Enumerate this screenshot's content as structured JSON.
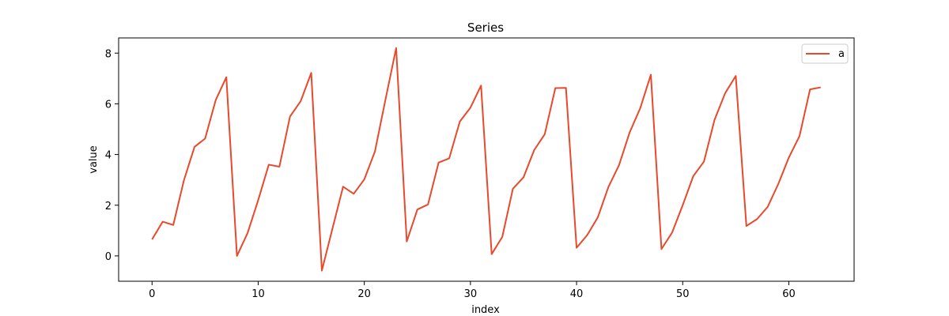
{
  "chart_data": {
    "type": "line",
    "title": "Series",
    "xlabel": "index",
    "ylabel": "value",
    "xlim": [
      -3.15,
      66.15
    ],
    "ylim": [
      -1.0,
      8.6
    ],
    "xticks": [
      0,
      10,
      20,
      30,
      40,
      50,
      60
    ],
    "yticks": [
      0,
      2,
      4,
      6,
      8
    ],
    "grid": false,
    "legend": {
      "placement": "top-right"
    },
    "series": [
      {
        "name": "a",
        "color": "#e8492c",
        "x": [
          0,
          1,
          2,
          3,
          4,
          5,
          6,
          7,
          8,
          9,
          10,
          11,
          12,
          13,
          14,
          15,
          16,
          17,
          18,
          19,
          20,
          21,
          22,
          23,
          24,
          25,
          26,
          27,
          28,
          29,
          30,
          31,
          32,
          33,
          34,
          35,
          36,
          37,
          38,
          39,
          40,
          41,
          42,
          43,
          44,
          45,
          46,
          47,
          48,
          49,
          50,
          51,
          52,
          53,
          54,
          55,
          56,
          57,
          58,
          59,
          60,
          61,
          62,
          63
        ],
        "values": [
          0.65,
          1.35,
          1.22,
          2.98,
          4.3,
          4.63,
          6.15,
          7.05,
          0.0,
          0.9,
          2.2,
          3.6,
          3.52,
          5.5,
          6.1,
          7.22,
          -0.58,
          1.08,
          2.73,
          2.45,
          3.02,
          4.12,
          6.18,
          8.2,
          0.57,
          1.83,
          2.03,
          3.68,
          3.85,
          5.3,
          5.85,
          6.72,
          0.07,
          0.75,
          2.65,
          3.1,
          4.17,
          4.8,
          6.62,
          6.63,
          0.32,
          0.82,
          1.52,
          2.72,
          3.58,
          4.87,
          5.83,
          7.15,
          0.27,
          0.92,
          2.0,
          3.15,
          3.72,
          5.37,
          6.42,
          7.1,
          1.18,
          1.45,
          1.93,
          2.83,
          3.88,
          4.72,
          6.57,
          6.65
        ]
      }
    ]
  }
}
